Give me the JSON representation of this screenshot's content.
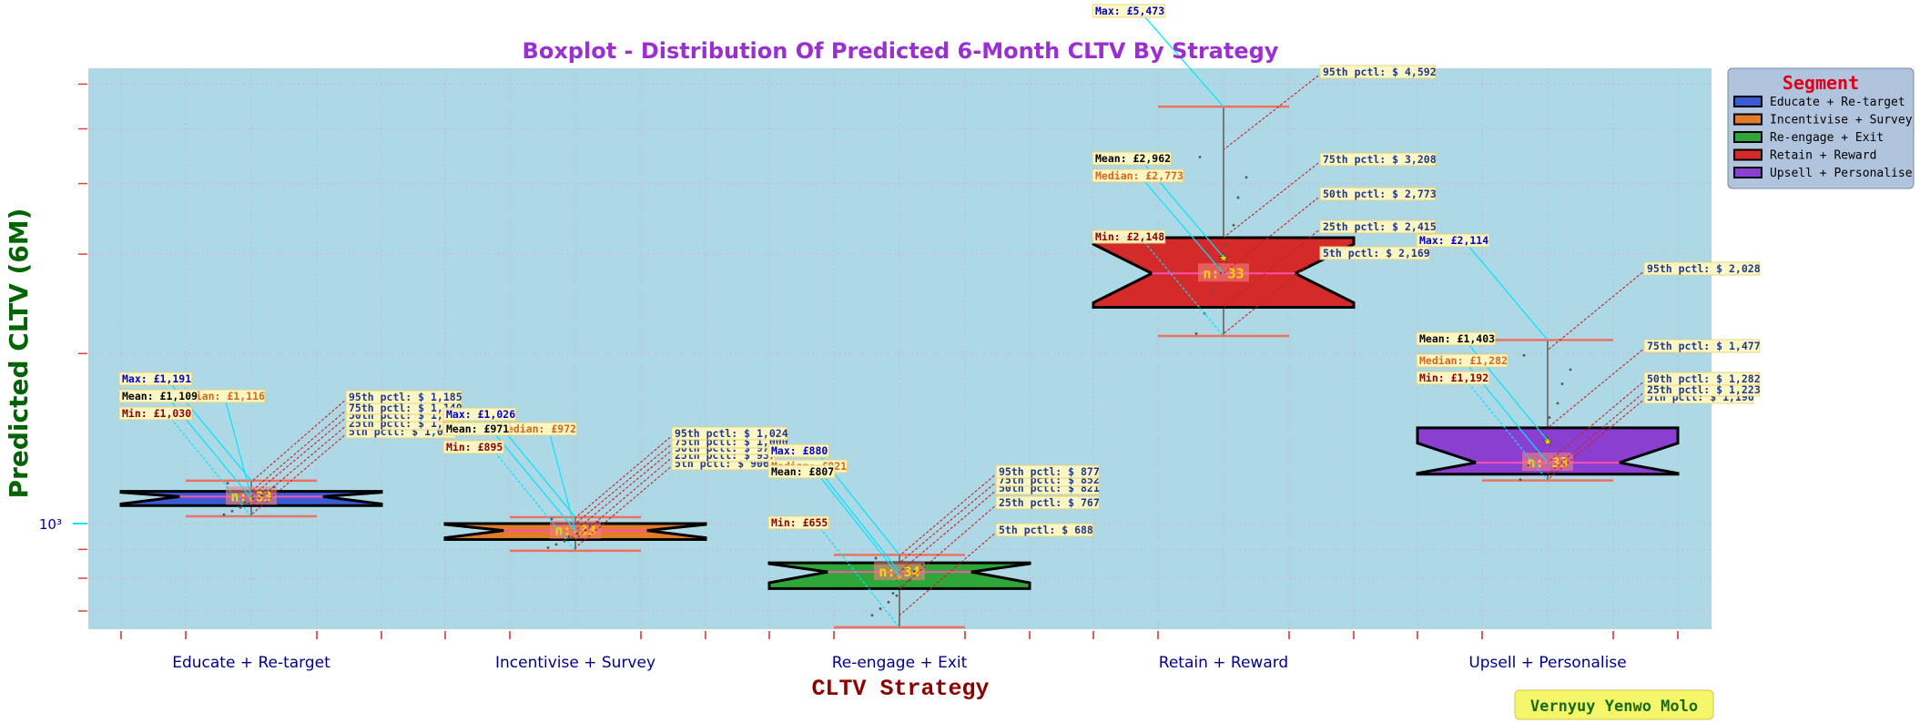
{
  "chart_data": {
    "type": "box",
    "title": "Boxplot - Distribution Of Predicted 6-Month CLTV By Strategy",
    "xlabel": "CLTV Strategy",
    "ylabel": "Predicted CLTV (6M)",
    "yscale": "log",
    "y_tick_label": "10³",
    "y_tick_value": 1000,
    "ylim": [
      650,
      6400
    ],
    "grid": true,
    "legend_title": "Segment",
    "legend_position": "top-right",
    "watermark": "Vernyuy Yenwo Molo",
    "n_label_prefix": "n: ",
    "categories": [
      "Educate + Re-target",
      "Incentivise + Survey",
      "Re-engage + Exit",
      "Retain + Reward",
      "Upsell + Personalise"
    ],
    "series": [
      {
        "name": "Educate + Re-target",
        "color": "#3a5ad6",
        "min": 1030,
        "max": 1191,
        "mean": 1109,
        "median": 1116,
        "p5": 1037,
        "p25": 1076,
        "p50": 1116,
        "p75": 1140,
        "p95": 1185,
        "n": 33,
        "texts": {
          "max": "Max: £1,191",
          "mean": "Mean: £1,109",
          "median": "Median: £1,116",
          "min": "Min: £1,030",
          "p95": "95th pctl: $ 1,185",
          "p75": "75th pctl: $ 1,140",
          "p50": "50th pctl: $ 1,116",
          "p25": "25th pctl: $ 1,076",
          "p5": "5th pctl: $ 1,037"
        }
      },
      {
        "name": "Incentivise + Survey",
        "color": "#e07b2a",
        "min": 895,
        "max": 1026,
        "mean": 971,
        "median": 972,
        "p5": 906,
        "p25": 937,
        "p50": 972,
        "p75": 1000,
        "p95": 1024,
        "n": 33,
        "texts": {
          "max": "Max: £1,026",
          "mean": "Mean: £971",
          "median": "Median: £972",
          "min": "Min: £895",
          "p95": "95th pctl: $ 1,024",
          "p75": "75th pctl: $ 1,000",
          "p50": "50th pctl: $ 972",
          "p25": "25th pctl: $ 937",
          "p5": "5th pctl: $ 906"
        }
      },
      {
        "name": "Re-engage + Exit",
        "color": "#2fa63a",
        "min": 655,
        "max": 880,
        "mean": 807,
        "median": 821,
        "p5": 688,
        "p25": 767,
        "p50": 821,
        "p75": 852,
        "p95": 877,
        "n": 34,
        "texts": {
          "max": "Max: £880",
          "mean": "Mean: £807",
          "median": "Median: £821",
          "min": "Min: £655",
          "p95": "95th pctl: $ 877",
          "p75": "75th pctl: $ 852",
          "p50": "50th pctl: $ 821",
          "p25": "25th pctl: $ 767",
          "p5": "5th pctl: $ 688"
        }
      },
      {
        "name": "Retain + Reward",
        "color": "#d42a2a",
        "min": 2148,
        "max": 5473,
        "mean": 2962,
        "median": 2773,
        "p5": 2169,
        "p25": 2415,
        "p50": 2773,
        "p75": 3208,
        "p95": 4592,
        "n": 33,
        "texts": {
          "max": "Max: £5,473",
          "mean": "Mean: £2,962",
          "median": "Median: £2,773",
          "min": "Min: £2,148",
          "p95": "95th pctl: $ 4,592",
          "p75": "75th pctl: $ 3,208",
          "p50": "50th pctl: $ 2,773",
          "p25": "25th pctl: $ 2,415",
          "p5": "5th pctl: $ 2,169"
        }
      },
      {
        "name": "Upsell + Personalise",
        "color": "#8a3fd1",
        "min": 1192,
        "max": 2114,
        "mean": 1403,
        "median": 1282,
        "p5": 1196,
        "p25": 1223,
        "p50": 1282,
        "p75": 1477,
        "p95": 2028,
        "n": 33,
        "texts": {
          "max": "Max: £2,114",
          "mean": "Mean: £1,403",
          "median": "Median: £1,282",
          "min": "Min: £1,192",
          "p95": "95th pctl: $ 2,028",
          "p75": "75th pctl: $ 1,477",
          "p50": "50th pctl: $ 1,282",
          "p25": "25th pctl: $ 1,223",
          "p5": "5th pctl: $ 1,196"
        }
      }
    ]
  }
}
